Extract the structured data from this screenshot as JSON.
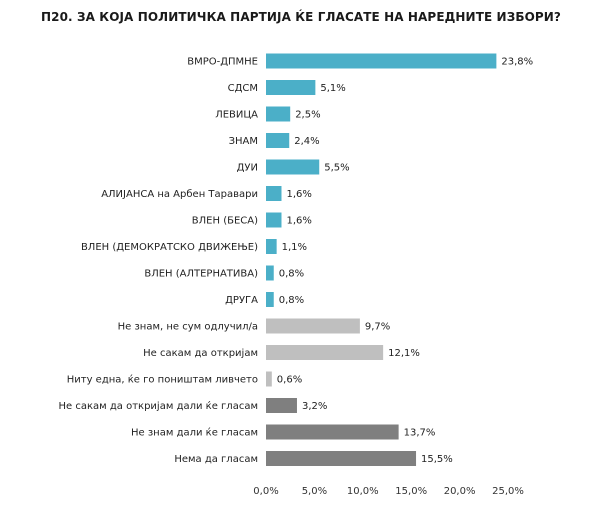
{
  "chart_data": {
    "type": "bar",
    "orientation": "horizontal",
    "title": "П20. ЗА КОЈА ПОЛИТИЧКА ПАРТИЈА ЌЕ ГЛАСАТЕ НА НАРЕДНИТЕ ИЗБОРИ?",
    "xlabel": "",
    "ylabel": "",
    "xlim": [
      0,
      25
    ],
    "ticks": [
      "0,0%",
      "5,0%",
      "10,0%",
      "15,0%",
      "20,0%",
      "25,0%"
    ],
    "tick_values": [
      0,
      5,
      10,
      15,
      20,
      25
    ],
    "grid": false,
    "legend": "none",
    "categories": [
      "ВМРО-ДПМНЕ",
      "СДСМ",
      "ЛЕВИЦА",
      "ЗНАМ",
      "ДУИ",
      "АЛИЈАНСА на Арбен Таравари",
      "ВЛЕН (БЕСА)",
      "ВЛЕН (ДЕМОКРАТСКО ДВИЖЕЊЕ)",
      "ВЛЕН (АЛТЕРНАТИВА)",
      "ДРУГА",
      "Не знам, не сум одлучил/а",
      "Не сакам да откријам",
      "Ниту една, ќе го поништам ливчето",
      "Не сакам да откријам дали ќе гласам",
      "Не знам дали ќе гласам",
      "Нема да гласам"
    ],
    "values": [
      23.8,
      5.1,
      2.5,
      2.4,
      5.5,
      1.6,
      1.6,
      1.1,
      0.8,
      0.8,
      9.7,
      12.1,
      0.6,
      3.2,
      13.7,
      15.5
    ],
    "value_labels": [
      "23,8%",
      "5,1%",
      "2,5%",
      "2,4%",
      "5,5%",
      "1,6%",
      "1,6%",
      "1,1%",
      "0,8%",
      "0,8%",
      "9,7%",
      "12,1%",
      "0,6%",
      "3,2%",
      "13,7%",
      "15,5%"
    ],
    "colors": [
      "#4bafc8",
      "#4bafc8",
      "#4bafc8",
      "#4bafc8",
      "#4bafc8",
      "#4bafc8",
      "#4bafc8",
      "#4bafc8",
      "#4bafc8",
      "#4bafc8",
      "#bfbfbf",
      "#bfbfbf",
      "#bfbfbf",
      "#7f7f7f",
      "#7f7f7f",
      "#7f7f7f"
    ]
  }
}
